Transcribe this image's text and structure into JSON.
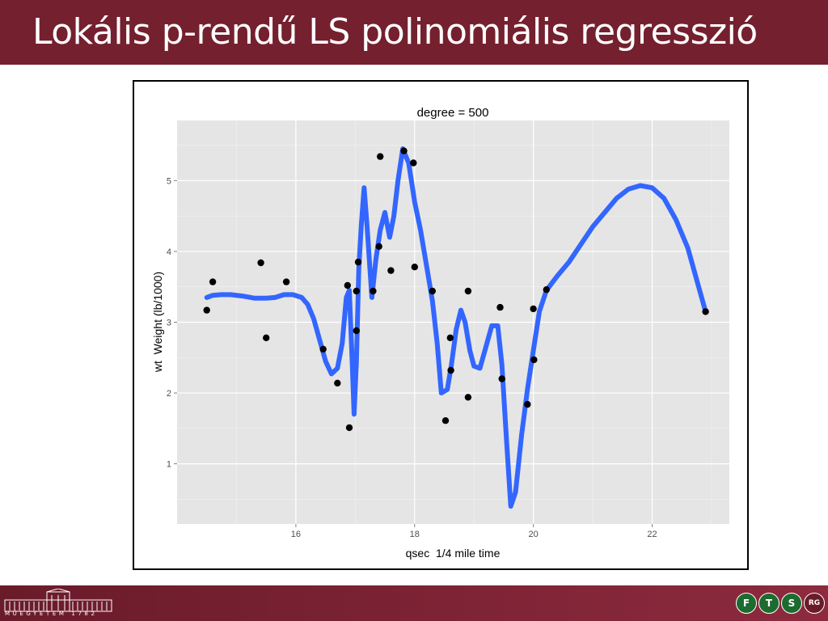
{
  "slide": {
    "title": "Lokális p-rendű LS polinomiális regresszió"
  },
  "footer": {
    "university_text": "MŰEGYETEM 1782",
    "logos": [
      {
        "label": "F",
        "icon": "f-logo-icon"
      },
      {
        "label": "T",
        "icon": "t-logo-icon"
      },
      {
        "label": "S",
        "icon": "s-logo-icon"
      },
      {
        "label": "RG",
        "icon": "rg-logo-icon"
      }
    ]
  },
  "chart_data": {
    "type": "scatter",
    "title": "degree = 500",
    "xlabel": "qsec  1/4 mile time",
    "ylabel": "wt  Weight (lb/1000)",
    "xlim": [
      14.0,
      23.3
    ],
    "ylim": [
      0.15,
      5.85
    ],
    "xticks": [
      16,
      18,
      20,
      22
    ],
    "yticks": [
      1,
      2,
      3,
      4,
      5
    ],
    "grid": true,
    "background": "#e5e5e5",
    "point_color": "#000000",
    "line_color": "#3366ff",
    "points": [
      {
        "x": 14.5,
        "y": 3.17
      },
      {
        "x": 14.6,
        "y": 3.57
      },
      {
        "x": 15.41,
        "y": 3.84
      },
      {
        "x": 15.5,
        "y": 2.78
      },
      {
        "x": 15.84,
        "y": 3.57
      },
      {
        "x": 16.46,
        "y": 2.62
      },
      {
        "x": 16.7,
        "y": 2.14
      },
      {
        "x": 16.87,
        "y": 3.52
      },
      {
        "x": 16.9,
        "y": 1.51
      },
      {
        "x": 17.02,
        "y": 3.44
      },
      {
        "x": 17.02,
        "y": 2.88
      },
      {
        "x": 17.05,
        "y": 3.85
      },
      {
        "x": 17.3,
        "y": 3.44
      },
      {
        "x": 17.4,
        "y": 4.07
      },
      {
        "x": 17.42,
        "y": 5.34
      },
      {
        "x": 17.6,
        "y": 3.73
      },
      {
        "x": 17.82,
        "y": 5.42
      },
      {
        "x": 17.98,
        "y": 5.25
      },
      {
        "x": 18.0,
        "y": 3.78
      },
      {
        "x": 18.3,
        "y": 3.44
      },
      {
        "x": 18.52,
        "y": 1.61
      },
      {
        "x": 18.6,
        "y": 2.78
      },
      {
        "x": 18.61,
        "y": 2.32
      },
      {
        "x": 18.9,
        "y": 3.44
      },
      {
        "x": 18.9,
        "y": 1.94
      },
      {
        "x": 19.44,
        "y": 3.21
      },
      {
        "x": 19.47,
        "y": 2.2
      },
      {
        "x": 19.9,
        "y": 1.84
      },
      {
        "x": 20.0,
        "y": 3.19
      },
      {
        "x": 20.01,
        "y": 2.47
      },
      {
        "x": 20.22,
        "y": 3.46
      },
      {
        "x": 22.9,
        "y": 3.15
      }
    ],
    "fit_line": [
      [
        14.5,
        3.35
      ],
      [
        14.6,
        3.38
      ],
      [
        14.75,
        3.39
      ],
      [
        14.9,
        3.39
      ],
      [
        15.1,
        3.37
      ],
      [
        15.3,
        3.34
      ],
      [
        15.5,
        3.34
      ],
      [
        15.65,
        3.35
      ],
      [
        15.8,
        3.39
      ],
      [
        15.95,
        3.39
      ],
      [
        16.1,
        3.35
      ],
      [
        16.2,
        3.25
      ],
      [
        16.3,
        3.05
      ],
      [
        16.4,
        2.75
      ],
      [
        16.5,
        2.45
      ],
      [
        16.6,
        2.27
      ],
      [
        16.7,
        2.35
      ],
      [
        16.78,
        2.7
      ],
      [
        16.85,
        3.35
      ],
      [
        16.9,
        3.45
      ],
      [
        16.95,
        2.4
      ],
      [
        16.98,
        1.7
      ],
      [
        17.02,
        2.45
      ],
      [
        17.06,
        3.75
      ],
      [
        17.1,
        4.35
      ],
      [
        17.15,
        4.9
      ],
      [
        17.2,
        4.35
      ],
      [
        17.28,
        3.35
      ],
      [
        17.35,
        3.9
      ],
      [
        17.42,
        4.3
      ],
      [
        17.5,
        4.55
      ],
      [
        17.58,
        4.2
      ],
      [
        17.65,
        4.5
      ],
      [
        17.72,
        5.0
      ],
      [
        17.8,
        5.45
      ],
      [
        17.9,
        5.25
      ],
      [
        18.0,
        4.7
      ],
      [
        18.1,
        4.3
      ],
      [
        18.2,
        3.8
      ],
      [
        18.3,
        3.3
      ],
      [
        18.38,
        2.7
      ],
      [
        18.45,
        2.0
      ],
      [
        18.55,
        2.05
      ],
      [
        18.62,
        2.4
      ],
      [
        18.7,
        2.9
      ],
      [
        18.78,
        3.17
      ],
      [
        18.85,
        3.0
      ],
      [
        18.93,
        2.6
      ],
      [
        19.0,
        2.38
      ],
      [
        19.1,
        2.35
      ],
      [
        19.2,
        2.65
      ],
      [
        19.3,
        2.95
      ],
      [
        19.4,
        2.95
      ],
      [
        19.47,
        2.4
      ],
      [
        19.55,
        1.3
      ],
      [
        19.62,
        0.4
      ],
      [
        19.7,
        0.6
      ],
      [
        19.8,
        1.4
      ],
      [
        19.9,
        2.05
      ],
      [
        20.0,
        2.6
      ],
      [
        20.1,
        3.15
      ],
      [
        20.22,
        3.45
      ],
      [
        20.4,
        3.65
      ],
      [
        20.6,
        3.85
      ],
      [
        20.8,
        4.1
      ],
      [
        21.0,
        4.35
      ],
      [
        21.2,
        4.55
      ],
      [
        21.4,
        4.75
      ],
      [
        21.6,
        4.88
      ],
      [
        21.8,
        4.93
      ],
      [
        22.0,
        4.9
      ],
      [
        22.2,
        4.75
      ],
      [
        22.4,
        4.45
      ],
      [
        22.6,
        4.05
      ],
      [
        22.75,
        3.6
      ],
      [
        22.9,
        3.15
      ]
    ]
  }
}
